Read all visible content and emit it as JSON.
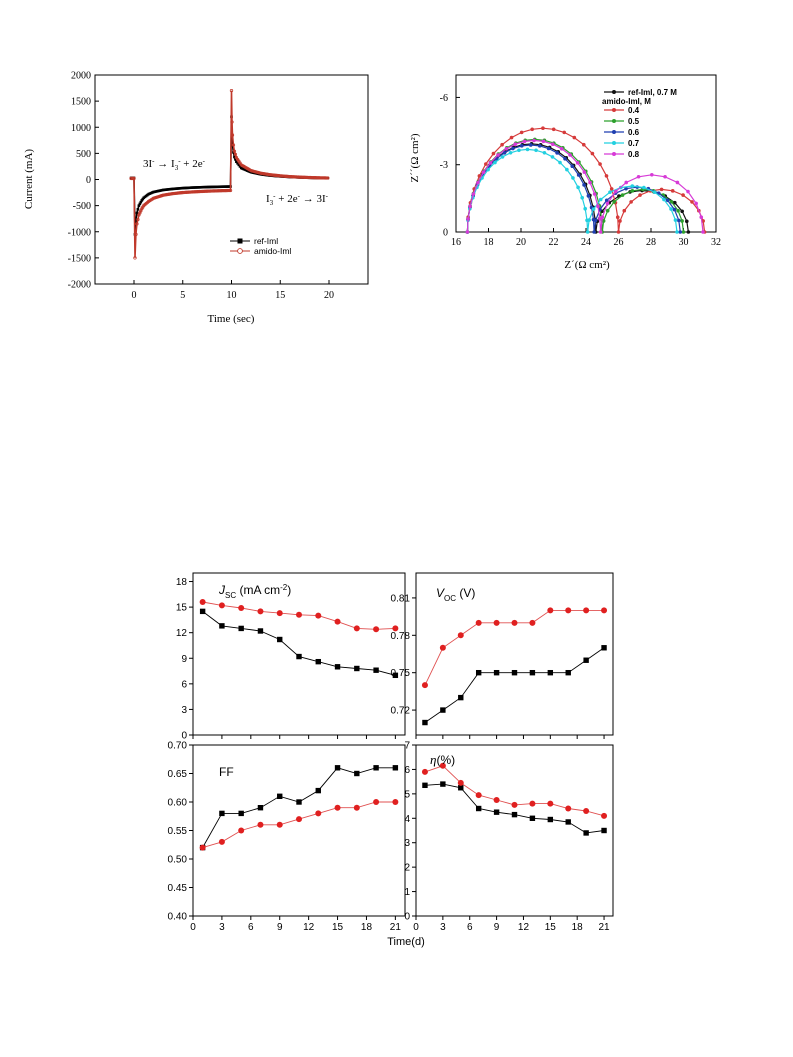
{
  "chart_data": [
    {
      "id": "current_time",
      "type": "line",
      "xlabel": "Time (sec)",
      "ylabel": "Current (mA)",
      "xlim": [
        -4,
        24
      ],
      "ylim": [
        -2000,
        2000
      ],
      "xticks": [
        "0",
        "5",
        "10",
        "15",
        "20"
      ],
      "yticks": [
        "2000",
        "1500",
        "1000",
        "500",
        "0",
        "-500",
        "-1000",
        "-1500",
        "-2000"
      ],
      "annotations": {
        "ox_left": "3I",
        "ox_right": " → I",
        "ox_tail": " + 2e",
        "red_left": "I",
        "red_mid": " + 2e",
        "red_right": " → 3I",
        "sup_minus": "-",
        "sub_3": "3"
      },
      "legend": [
        "ref-Iml",
        "amido-Iml"
      ],
      "series": [
        {
          "name": "ref-Iml",
          "color": "#000000",
          "x": [
            -0.3,
            0,
            0.1,
            0.2,
            0.3,
            0.5,
            0.8,
            1,
            1.5,
            2,
            3,
            4,
            5,
            6,
            7,
            8,
            9,
            9.9,
            10,
            10.05,
            10.1,
            10.2,
            10.3,
            10.5,
            11,
            12,
            13,
            14,
            15,
            16,
            17,
            18,
            19,
            20
          ],
          "y": [
            30,
            30,
            -1050,
            -780,
            -640,
            -500,
            -400,
            -350,
            -280,
            -240,
            -200,
            -180,
            -165,
            -155,
            -148,
            -142,
            -138,
            -135,
            1200,
            820,
            660,
            520,
            430,
            340,
            220,
            140,
            100,
            75,
            60,
            48,
            40,
            33,
            28,
            25
          ]
        },
        {
          "name": "amido-Iml",
          "color": "#c0392b",
          "x": [
            -0.3,
            0,
            0.1,
            0.2,
            0.3,
            0.5,
            0.8,
            1,
            1.5,
            2,
            3,
            4,
            5,
            6,
            7,
            8,
            9,
            9.9,
            10,
            10.05,
            10.1,
            10.2,
            10.3,
            10.5,
            11,
            12,
            13,
            14,
            15,
            16,
            17,
            18,
            19,
            20
          ],
          "y": [
            20,
            20,
            -1500,
            -1050,
            -850,
            -680,
            -560,
            -500,
            -420,
            -360,
            -300,
            -270,
            -250,
            -238,
            -228,
            -220,
            -214,
            -210,
            1700,
            1100,
            850,
            660,
            540,
            420,
            280,
            170,
            120,
            90,
            70,
            55,
            45,
            38,
            32,
            28
          ]
        }
      ]
    },
    {
      "id": "nyquist",
      "type": "scatter",
      "xlabel": "Z´(Ω cm²)",
      "ylabel": "Z´´(Ω cm²)",
      "xlim": [
        16,
        32
      ],
      "ylim": [
        0,
        -7
      ],
      "xticks": [
        "16",
        "18",
        "20",
        "22",
        "24",
        "26",
        "28",
        "30",
        "32"
      ],
      "yticks": [
        "0",
        "-3",
        "-6"
      ],
      "legend_title": "amido-Iml, M",
      "series": [
        {
          "name": "ref-Iml, 0.7 M",
          "color": "#111111",
          "r1": [
            16.7,
            24.6
          ],
          "r2": [
            24.6,
            30.3
          ],
          "h2": 1.85
        },
        {
          "name": "0.4",
          "color": "#d63a3a",
          "r1": [
            16.7,
            26.0
          ],
          "r2": [
            26.0,
            31.3
          ],
          "h2": 1.9
        },
        {
          "name": "0.5",
          "color": "#2ca02c",
          "r1": [
            16.7,
            25.0
          ],
          "r2": [
            25.0,
            30.0
          ],
          "h2": 1.9
        },
        {
          "name": "0.6",
          "color": "#1f3fb0",
          "r1": [
            16.7,
            24.5
          ],
          "r2": [
            24.5,
            29.8
          ],
          "h2": 2.0
        },
        {
          "name": "0.7",
          "color": "#22d0e0",
          "r1": [
            16.7,
            24.1
          ],
          "r2": [
            24.1,
            29.6
          ],
          "h2": 2.05
        },
        {
          "name": "0.8",
          "color": "#d73bd7",
          "r1": [
            16.7,
            24.9
          ],
          "r2": [
            24.9,
            31.2
          ],
          "h2": 2.55
        }
      ]
    },
    {
      "id": "jsc",
      "type": "line",
      "label_main": "J",
      "label_sub": "SC",
      "label_rest": " (mA cm",
      "label_sup": "-2",
      "label_end": ")",
      "ylim": [
        0,
        19
      ],
      "yticks": [
        0,
        3,
        6,
        9,
        12,
        15,
        18
      ],
      "x": [
        1,
        3,
        5,
        7,
        9,
        11,
        13,
        15,
        17,
        19,
        21
      ],
      "series": [
        {
          "name": "ref-Iml",
          "color": "#000000",
          "marker": "square",
          "values": [
            14.5,
            12.8,
            12.5,
            12.2,
            11.2,
            9.2,
            8.6,
            8.0,
            7.8,
            7.6,
            7.0
          ]
        },
        {
          "name": "amido-Iml",
          "color": "#e02020",
          "marker": "circle",
          "values": [
            15.6,
            15.2,
            14.9,
            14.5,
            14.3,
            14.1,
            14.0,
            13.3,
            12.5,
            12.4,
            12.5
          ]
        }
      ]
    },
    {
      "id": "voc",
      "type": "line",
      "label_main": "V",
      "label_sub": "OC",
      "label_rest": " (V)",
      "ylim": [
        0.7,
        0.83
      ],
      "yticks": [
        0.72,
        0.75,
        0.78,
        0.81
      ],
      "x": [
        1,
        3,
        5,
        7,
        9,
        11,
        13,
        15,
        17,
        19,
        21
      ],
      "series": [
        {
          "name": "ref-Iml",
          "color": "#000000",
          "marker": "square",
          "values": [
            0.71,
            0.72,
            0.73,
            0.75,
            0.75,
            0.75,
            0.75,
            0.75,
            0.75,
            0.76,
            0.77
          ]
        },
        {
          "name": "amido-Iml",
          "color": "#e02020",
          "marker": "circle",
          "values": [
            0.74,
            0.77,
            0.78,
            0.79,
            0.79,
            0.79,
            0.79,
            0.8,
            0.8,
            0.8,
            0.8
          ]
        }
      ]
    },
    {
      "id": "ff",
      "type": "line",
      "label_main": "FF",
      "ylim": [
        0.4,
        0.7
      ],
      "yticks": [
        0.4,
        0.45,
        0.5,
        0.55,
        0.6,
        0.65,
        0.7
      ],
      "x": [
        1,
        3,
        5,
        7,
        9,
        11,
        13,
        15,
        17,
        19,
        21
      ],
      "series": [
        {
          "name": "ref-Iml",
          "color": "#000000",
          "marker": "square",
          "values": [
            0.52,
            0.58,
            0.58,
            0.59,
            0.61,
            0.6,
            0.62,
            0.66,
            0.65,
            0.66,
            0.66
          ]
        },
        {
          "name": "amido-Iml",
          "color": "#e02020",
          "marker": "circle",
          "values": [
            0.52,
            0.53,
            0.55,
            0.56,
            0.56,
            0.57,
            0.58,
            0.59,
            0.59,
            0.6,
            0.6
          ]
        }
      ]
    },
    {
      "id": "eta",
      "type": "line",
      "label_main": "η",
      "label_rest": "(%)",
      "ylim": [
        0,
        7
      ],
      "yticks": [
        0,
        1,
        2,
        3,
        4,
        5,
        6,
        7
      ],
      "x": [
        1,
        3,
        5,
        7,
        9,
        11,
        13,
        15,
        17,
        19,
        21
      ],
      "series": [
        {
          "name": "ref-Iml",
          "color": "#000000",
          "marker": "square",
          "values": [
            5.35,
            5.4,
            5.25,
            4.4,
            4.25,
            4.15,
            4.0,
            3.95,
            3.85,
            3.4,
            3.5
          ]
        },
        {
          "name": "amido-Iml",
          "color": "#e02020",
          "marker": "circle",
          "values": [
            5.9,
            6.15,
            5.45,
            4.95,
            4.75,
            4.55,
            4.6,
            4.6,
            4.4,
            4.3,
            4.1
          ]
        }
      ]
    },
    {
      "id": "shared_x",
      "xlabel": "Time(d)",
      "xlim": [
        0,
        22
      ],
      "xticks": [
        0,
        3,
        6,
        9,
        12,
        15,
        18,
        21
      ]
    }
  ]
}
